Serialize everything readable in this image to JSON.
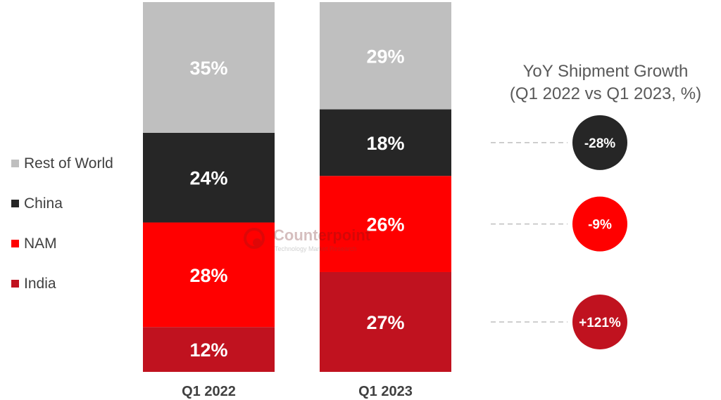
{
  "chart_data": {
    "type": "bar",
    "stacked": true,
    "percent_stacked": true,
    "categories": [
      "Q1 2022",
      "Q1 2023"
    ],
    "series": [
      {
        "name": "India",
        "values": [
          12,
          27
        ],
        "labels": [
          "12%",
          "27%"
        ],
        "color": "#c0121f"
      },
      {
        "name": "NAM",
        "values": [
          28,
          26
        ],
        "labels": [
          "28%",
          "26%"
        ],
        "color": "#ff0000"
      },
      {
        "name": "China",
        "values": [
          24,
          18
        ],
        "labels": [
          "24%",
          "18%"
        ],
        "color": "#262626"
      },
      {
        "name": "Rest of World",
        "values": [
          35,
          29
        ],
        "labels": [
          "35%",
          "29%"
        ],
        "color": "#bfbfbf"
      }
    ],
    "ylim": [
      0,
      100
    ],
    "grid": false,
    "legend_position": "left",
    "legend": [
      {
        "name": "Rest of World",
        "color": "#bfbfbf"
      },
      {
        "name": "China",
        "color": "#262626"
      },
      {
        "name": "NAM",
        "color": "#ff0000"
      },
      {
        "name": "India",
        "color": "#c0121f"
      }
    ],
    "growth": {
      "title_line1": "YoY Shipment Growth",
      "title_line2": "(Q1 2022 vs Q1 2023, %)",
      "items": [
        {
          "series": "China",
          "value": -28,
          "label": "-28%",
          "color": "#262626"
        },
        {
          "series": "NAM",
          "value": -9,
          "label": "-9%",
          "color": "#ff0000"
        },
        {
          "series": "India",
          "value": 121,
          "label": "+121%",
          "color": "#c0121f"
        }
      ]
    }
  },
  "watermark": {
    "name": "Counterpoint",
    "tagline": "Technology Market Research"
  }
}
